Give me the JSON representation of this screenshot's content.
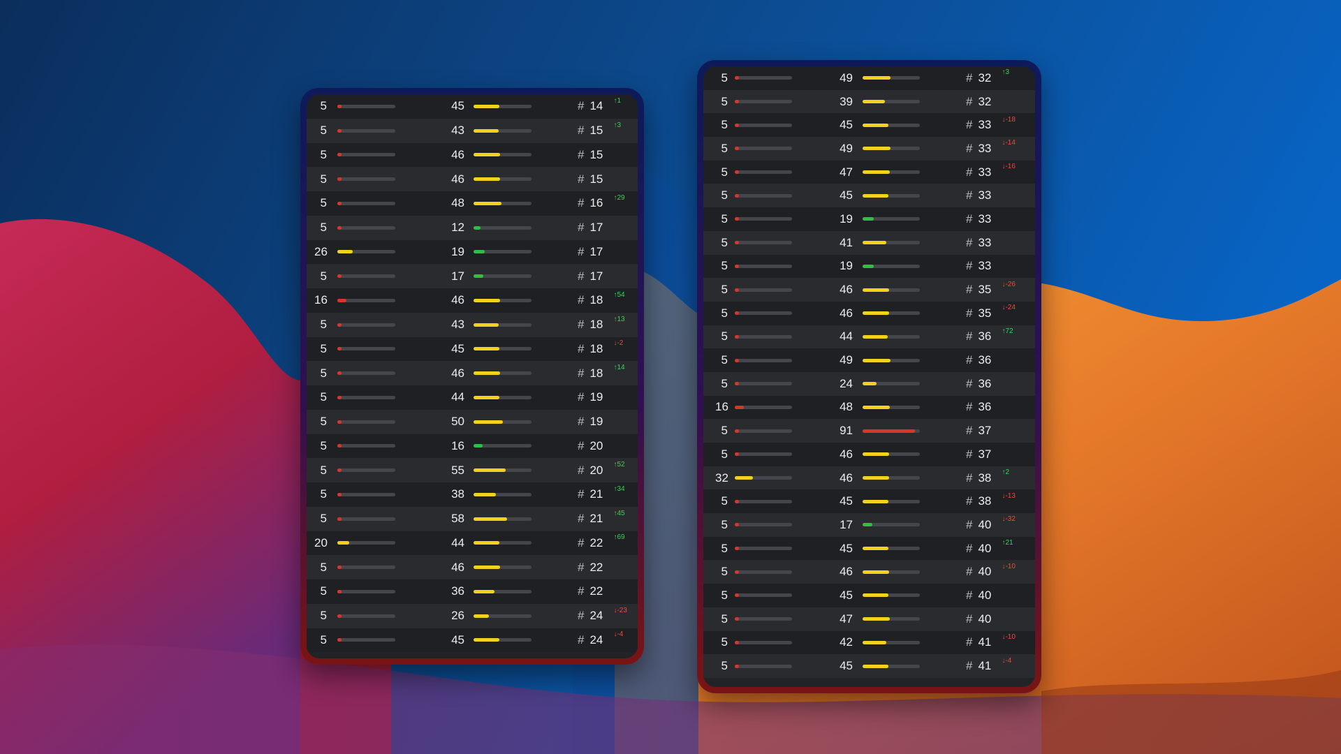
{
  "colors": {
    "low": "#d8362b",
    "mid": "#f2d21e",
    "good": "#2fbf45",
    "high": "#d8362b",
    "up": "#3ad35a",
    "down": "#f04b3e"
  },
  "hash_symbol": "#",
  "left_panel": {
    "rows": [
      {
        "a": "5",
        "a_level": 5,
        "b": "45",
        "b_level": 45,
        "rank": "14",
        "delta": "↑1",
        "dir": "up"
      },
      {
        "a": "5",
        "a_level": 5,
        "b": "43",
        "b_level": 43,
        "rank": "15",
        "delta": "↑3",
        "dir": "up"
      },
      {
        "a": "5",
        "a_level": 5,
        "b": "46",
        "b_level": 46,
        "rank": "15",
        "delta": "",
        "dir": ""
      },
      {
        "a": "5",
        "a_level": 5,
        "b": "46",
        "b_level": 46,
        "rank": "15",
        "delta": "",
        "dir": ""
      },
      {
        "a": "5",
        "a_level": 5,
        "b": "48",
        "b_level": 48,
        "rank": "16",
        "delta": "↑29",
        "dir": "up"
      },
      {
        "a": "5",
        "a_level": 5,
        "b": "12",
        "b_level": 12,
        "rank": "17",
        "delta": "",
        "dir": ""
      },
      {
        "a": "26",
        "a_level": 26,
        "b": "19",
        "b_level": 19,
        "rank": "17",
        "delta": "",
        "dir": ""
      },
      {
        "a": "5",
        "a_level": 5,
        "b": "17",
        "b_level": 17,
        "rank": "17",
        "delta": "",
        "dir": ""
      },
      {
        "a": "16",
        "a_level": 16,
        "b": "46",
        "b_level": 46,
        "rank": "18",
        "delta": "↑54",
        "dir": "up"
      },
      {
        "a": "5",
        "a_level": 5,
        "b": "43",
        "b_level": 43,
        "rank": "18",
        "delta": "↑13",
        "dir": "up"
      },
      {
        "a": "5",
        "a_level": 5,
        "b": "45",
        "b_level": 45,
        "rank": "18",
        "delta": "↓-2",
        "dir": "down"
      },
      {
        "a": "5",
        "a_level": 5,
        "b": "46",
        "b_level": 46,
        "rank": "18",
        "delta": "↑14",
        "dir": "up"
      },
      {
        "a": "5",
        "a_level": 5,
        "b": "44",
        "b_level": 44,
        "rank": "19",
        "delta": "",
        "dir": ""
      },
      {
        "a": "5",
        "a_level": 5,
        "b": "50",
        "b_level": 50,
        "rank": "19",
        "delta": "",
        "dir": ""
      },
      {
        "a": "5",
        "a_level": 5,
        "b": "16",
        "b_level": 16,
        "rank": "20",
        "delta": "",
        "dir": ""
      },
      {
        "a": "5",
        "a_level": 5,
        "b": "55",
        "b_level": 55,
        "rank": "20",
        "delta": "↑52",
        "dir": "up"
      },
      {
        "a": "5",
        "a_level": 5,
        "b": "38",
        "b_level": 38,
        "rank": "21",
        "delta": "↑34",
        "dir": "up"
      },
      {
        "a": "5",
        "a_level": 5,
        "b": "58",
        "b_level": 58,
        "rank": "21",
        "delta": "↑45",
        "dir": "up"
      },
      {
        "a": "20",
        "a_level": 20,
        "b": "44",
        "b_level": 44,
        "rank": "22",
        "delta": "↑69",
        "dir": "up"
      },
      {
        "a": "5",
        "a_level": 5,
        "b": "46",
        "b_level": 46,
        "rank": "22",
        "delta": "",
        "dir": ""
      },
      {
        "a": "5",
        "a_level": 5,
        "b": "36",
        "b_level": 36,
        "rank": "22",
        "delta": "",
        "dir": ""
      },
      {
        "a": "5",
        "a_level": 5,
        "b": "26",
        "b_level": 26,
        "rank": "24",
        "delta": "↓-23",
        "dir": "down"
      },
      {
        "a": "5",
        "a_level": 5,
        "b": "45",
        "b_level": 45,
        "rank": "24",
        "delta": "↓-4",
        "dir": "down"
      }
    ]
  },
  "right_panel": {
    "rows": [
      {
        "a": "5",
        "a_level": 5,
        "b": "49",
        "b_level": 49,
        "rank": "32",
        "delta": "↑3",
        "dir": "up"
      },
      {
        "a": "5",
        "a_level": 5,
        "b": "39",
        "b_level": 39,
        "rank": "32",
        "delta": "",
        "dir": ""
      },
      {
        "a": "5",
        "a_level": 5,
        "b": "45",
        "b_level": 45,
        "rank": "33",
        "delta": "↓-18",
        "dir": "down"
      },
      {
        "a": "5",
        "a_level": 5,
        "b": "49",
        "b_level": 49,
        "rank": "33",
        "delta": "↓-14",
        "dir": "down"
      },
      {
        "a": "5",
        "a_level": 5,
        "b": "47",
        "b_level": 47,
        "rank": "33",
        "delta": "↓-16",
        "dir": "down"
      },
      {
        "a": "5",
        "a_level": 5,
        "b": "45",
        "b_level": 45,
        "rank": "33",
        "delta": "",
        "dir": ""
      },
      {
        "a": "5",
        "a_level": 5,
        "b": "19",
        "b_level": 19,
        "rank": "33",
        "delta": "",
        "dir": ""
      },
      {
        "a": "5",
        "a_level": 5,
        "b": "41",
        "b_level": 41,
        "rank": "33",
        "delta": "",
        "dir": ""
      },
      {
        "a": "5",
        "a_level": 5,
        "b": "19",
        "b_level": 19,
        "rank": "33",
        "delta": "",
        "dir": ""
      },
      {
        "a": "5",
        "a_level": 5,
        "b": "46",
        "b_level": 46,
        "rank": "35",
        "delta": "↓-26",
        "dir": "down"
      },
      {
        "a": "5",
        "a_level": 5,
        "b": "46",
        "b_level": 46,
        "rank": "35",
        "delta": "↓-24",
        "dir": "down"
      },
      {
        "a": "5",
        "a_level": 5,
        "b": "44",
        "b_level": 44,
        "rank": "36",
        "delta": "↑72",
        "dir": "up"
      },
      {
        "a": "5",
        "a_level": 5,
        "b": "49",
        "b_level": 49,
        "rank": "36",
        "delta": "",
        "dir": ""
      },
      {
        "a": "5",
        "a_level": 5,
        "b": "24",
        "b_level": 24,
        "rank": "36",
        "delta": "",
        "dir": ""
      },
      {
        "a": "16",
        "a_level": 16,
        "b": "48",
        "b_level": 48,
        "rank": "36",
        "delta": "",
        "dir": ""
      },
      {
        "a": "5",
        "a_level": 5,
        "b": "91",
        "b_level": 91,
        "rank": "37",
        "delta": "",
        "dir": ""
      },
      {
        "a": "5",
        "a_level": 5,
        "b": "46",
        "b_level": 46,
        "rank": "37",
        "delta": "",
        "dir": ""
      },
      {
        "a": "32",
        "a_level": 32,
        "b": "46",
        "b_level": 46,
        "rank": "38",
        "delta": "↑2",
        "dir": "up"
      },
      {
        "a": "5",
        "a_level": 5,
        "b": "45",
        "b_level": 45,
        "rank": "38",
        "delta": "↓-13",
        "dir": "down"
      },
      {
        "a": "5",
        "a_level": 5,
        "b": "17",
        "b_level": 17,
        "rank": "40",
        "delta": "↓-32",
        "dir": "down"
      },
      {
        "a": "5",
        "a_level": 5,
        "b": "45",
        "b_level": 45,
        "rank": "40",
        "delta": "↑21",
        "dir": "up"
      },
      {
        "a": "5",
        "a_level": 5,
        "b": "46",
        "b_level": 46,
        "rank": "40",
        "delta": "↓-10",
        "dir": "down"
      },
      {
        "a": "5",
        "a_level": 5,
        "b": "45",
        "b_level": 45,
        "rank": "40",
        "delta": "",
        "dir": ""
      },
      {
        "a": "5",
        "a_level": 5,
        "b": "47",
        "b_level": 47,
        "rank": "40",
        "delta": "",
        "dir": ""
      },
      {
        "a": "5",
        "a_level": 5,
        "b": "42",
        "b_level": 42,
        "rank": "41",
        "delta": "↓-10",
        "dir": "down"
      },
      {
        "a": "5",
        "a_level": 5,
        "b": "45",
        "b_level": 45,
        "rank": "41",
        "delta": "↓-4",
        "dir": "down"
      }
    ]
  }
}
